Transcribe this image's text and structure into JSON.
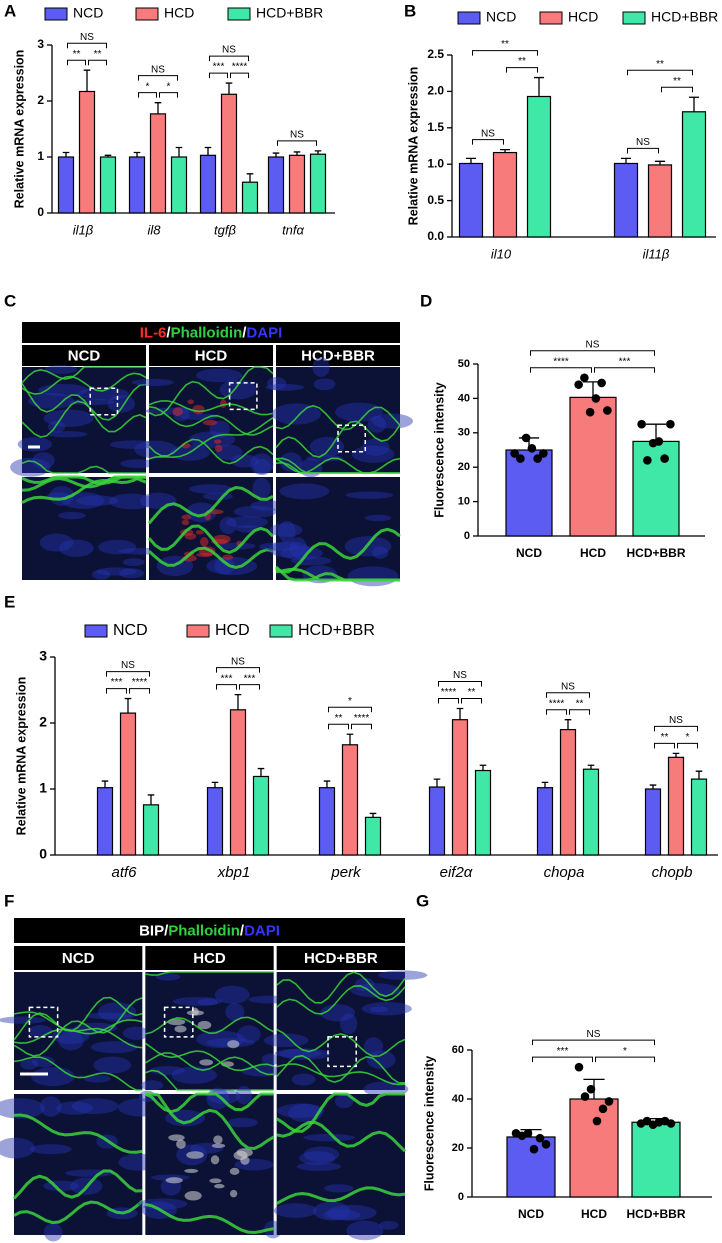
{
  "chart_data": [
    {
      "type": "bar",
      "label": "A",
      "ylabel": "Relative mRNA expression",
      "categories": [
        "il1β",
        "il8",
        "tgfβ",
        "tnfα"
      ],
      "series": [
        {
          "name": "NCD",
          "color": "#5c5cf2",
          "values": [
            1.0,
            1.0,
            1.03,
            1.0
          ],
          "errors": [
            0.08,
            0.08,
            0.14,
            0.07
          ]
        },
        {
          "name": "HCD",
          "color": "#f77b7b",
          "values": [
            2.17,
            1.77,
            2.12,
            1.03
          ],
          "errors": [
            0.38,
            0.2,
            0.2,
            0.06
          ]
        },
        {
          "name": "HCD+BBR",
          "color": "#3fe8a6",
          "values": [
            1.0,
            1.0,
            0.55,
            1.05
          ],
          "errors": [
            0.03,
            0.17,
            0.15,
            0.06
          ]
        }
      ],
      "ylim": [
        0,
        3
      ],
      "yticks": [
        0,
        1,
        2,
        3
      ],
      "annotations": [
        {
          "category": 0,
          "pair": [
            0,
            2
          ],
          "label": "NS"
        },
        {
          "category": 0,
          "pair": [
            0,
            1
          ],
          "label": "**"
        },
        {
          "category": 0,
          "pair": [
            1,
            2
          ],
          "label": "**"
        },
        {
          "category": 1,
          "pair": [
            0,
            2
          ],
          "label": "NS"
        },
        {
          "category": 1,
          "pair": [
            0,
            1
          ],
          "label": "*"
        },
        {
          "category": 1,
          "pair": [
            1,
            2
          ],
          "label": "*"
        },
        {
          "category": 2,
          "pair": [
            0,
            2
          ],
          "label": "NS"
        },
        {
          "category": 2,
          "pair": [
            0,
            1
          ],
          "label": "***"
        },
        {
          "category": 2,
          "pair": [
            1,
            2
          ],
          "label": "****"
        },
        {
          "category": 3,
          "pair": [
            0,
            2
          ],
          "label": "NS"
        }
      ]
    },
    {
      "type": "bar",
      "label": "B",
      "ylabel": "Relative mRNA expression",
      "categories": [
        "il10",
        "il11β"
      ],
      "series": [
        {
          "name": "NCD",
          "color": "#5c5cf2",
          "values": [
            1.01,
            1.01
          ],
          "errors": [
            0.07,
            0.07
          ]
        },
        {
          "name": "HCD",
          "color": "#f77b7b",
          "values": [
            1.16,
            0.99
          ],
          "errors": [
            0.04,
            0.05
          ]
        },
        {
          "name": "HCD+BBR",
          "color": "#3fe8a6",
          "values": [
            1.93,
            1.72
          ],
          "errors": [
            0.26,
            0.2
          ]
        }
      ],
      "ylim": [
        0,
        2.5
      ],
      "yticks": [
        {
          "value": 0,
          "label": "0.0"
        },
        0.5,
        {
          "value": 1,
          "label": "1.0"
        },
        1.5,
        {
          "value": 2,
          "label": "2.0"
        },
        2.5
      ],
      "annotations": [
        {
          "category": 0,
          "pair": [
            0,
            1
          ],
          "label": "NS"
        },
        {
          "category": 0,
          "pair": [
            1,
            2
          ],
          "label": "**"
        },
        {
          "category": 0,
          "pair": [
            0,
            2
          ],
          "label": "**"
        },
        {
          "category": 1,
          "pair": [
            0,
            1
          ],
          "label": "NS"
        },
        {
          "category": 1,
          "pair": [
            1,
            2
          ],
          "label": "**"
        },
        {
          "category": 1,
          "pair": [
            0,
            2
          ],
          "label": "**"
        }
      ]
    },
    {
      "type": "bar",
      "label": "D",
      "ylabel": "Fluorescence intensity",
      "categories": [
        "NCD",
        "HCD",
        "HCD+BBR"
      ],
      "values": [
        25,
        40.3,
        27.5
      ],
      "errors": [
        3.5,
        4.5,
        5
      ],
      "colors": [
        "#5c5cf2",
        "#f77b7b",
        "#3fe8a6"
      ],
      "points": [
        [
          24,
          22.5,
          28.5,
          25.5,
          22.5,
          24
        ],
        [
          44,
          46,
          36,
          40,
          44.5,
          36.5
        ],
        [
          32.5,
          22,
          27,
          27.5,
          22.5,
          32.5
        ]
      ],
      "ylim": [
        0,
        50
      ],
      "yticks": [
        0,
        10,
        20,
        30,
        40,
        50
      ],
      "annotations": [
        {
          "pair": [
            0,
            1
          ],
          "label": "****"
        },
        {
          "pair": [
            1,
            2
          ],
          "label": "***"
        },
        {
          "pair": [
            0,
            2
          ],
          "label": "NS"
        }
      ]
    },
    {
      "type": "bar",
      "label": "E",
      "ylabel": "Relative mRNA expression",
      "categories": [
        "atf6",
        "xbp1",
        "perk",
        "eif2α",
        "chopa",
        "chopb"
      ],
      "series": [
        {
          "name": "NCD",
          "color": "#5c5cf2",
          "values": [
            1.02,
            1.02,
            1.02,
            1.03,
            1.02,
            1.0
          ],
          "errors": [
            0.1,
            0.08,
            0.1,
            0.12,
            0.08,
            0.06
          ]
        },
        {
          "name": "HCD",
          "color": "#f77b7b",
          "values": [
            2.15,
            2.2,
            1.67,
            2.05,
            1.9,
            1.48
          ],
          "errors": [
            0.22,
            0.23,
            0.16,
            0.17,
            0.15,
            0.06
          ]
        },
        {
          "name": "HCD+BBR",
          "color": "#3fe8a6",
          "values": [
            0.76,
            1.19,
            0.57,
            1.28,
            1.3,
            1.15
          ],
          "errors": [
            0.15,
            0.12,
            0.06,
            0.08,
            0.06,
            0.12
          ]
        }
      ],
      "ylim": [
        0,
        3
      ],
      "yticks": [
        0,
        1,
        2,
        3
      ],
      "annotations": [
        {
          "category": 0,
          "pair": [
            0,
            2
          ],
          "label": "NS"
        },
        {
          "category": 0,
          "pair": [
            0,
            1
          ],
          "label": "***"
        },
        {
          "category": 0,
          "pair": [
            1,
            2
          ],
          "label": "****"
        },
        {
          "category": 1,
          "pair": [
            0,
            2
          ],
          "label": "NS"
        },
        {
          "category": 1,
          "pair": [
            0,
            1
          ],
          "label": "***"
        },
        {
          "category": 1,
          "pair": [
            1,
            2
          ],
          "label": "***"
        },
        {
          "category": 2,
          "pair": [
            0,
            2
          ],
          "label": "*"
        },
        {
          "category": 2,
          "pair": [
            0,
            1
          ],
          "label": "**"
        },
        {
          "category": 2,
          "pair": [
            1,
            2
          ],
          "label": "****"
        },
        {
          "category": 3,
          "pair": [
            0,
            2
          ],
          "label": "NS"
        },
        {
          "category": 3,
          "pair": [
            0,
            1
          ],
          "label": "****"
        },
        {
          "category": 3,
          "pair": [
            1,
            2
          ],
          "label": "**"
        },
        {
          "category": 4,
          "pair": [
            0,
            2
          ],
          "label": "NS"
        },
        {
          "category": 4,
          "pair": [
            0,
            1
          ],
          "label": "****"
        },
        {
          "category": 4,
          "pair": [
            1,
            2
          ],
          "label": "**"
        },
        {
          "category": 5,
          "pair": [
            0,
            2
          ],
          "label": "NS"
        },
        {
          "category": 5,
          "pair": [
            0,
            1
          ],
          "label": "**"
        },
        {
          "category": 5,
          "pair": [
            1,
            2
          ],
          "label": "*"
        }
      ]
    },
    {
      "type": "bar",
      "label": "G",
      "ylabel": "Fluorescence intensity",
      "categories": [
        "NCD",
        "HCD",
        "HCD+BBR"
      ],
      "values": [
        24.5,
        40,
        30.5
      ],
      "errors": [
        3,
        8,
        1.5
      ],
      "colors": [
        "#5c5cf2",
        "#f77b7b",
        "#3fe8a6"
      ],
      "points": [
        [
          26,
          25,
          26,
          19.5,
          24,
          21.5
        ],
        [
          53,
          41,
          44,
          31,
          36,
          39
        ],
        [
          30,
          31,
          29.5,
          30.5,
          31,
          30
        ]
      ],
      "ylim": [
        0,
        60
      ],
      "yticks": [
        0,
        20,
        40,
        60
      ],
      "annotations": [
        {
          "pair": [
            0,
            1
          ],
          "label": "***"
        },
        {
          "pair": [
            1,
            2
          ],
          "label": "*"
        },
        {
          "pair": [
            0,
            2
          ],
          "label": "NS"
        }
      ]
    }
  ],
  "image_panels": [
    {
      "label": "C",
      "title": [
        {
          "text": "IL-6",
          "color": "#ff2b2b"
        },
        {
          "text": "/",
          "color": "#ffffff"
        },
        {
          "text": "Phalloidin",
          "color": "#2ed13f"
        },
        {
          "text": "/",
          "color": "#ffffff"
        },
        {
          "text": "DAPI",
          "color": "#3535ff"
        }
      ],
      "columns": [
        "NCD",
        "HCD",
        "HCD+BBR"
      ]
    },
    {
      "label": "F",
      "title": [
        {
          "text": "BIP",
          "color": "#ffffff"
        },
        {
          "text": "/",
          "color": "#ffffff"
        },
        {
          "text": "Phalloidin",
          "color": "#2ed13f"
        },
        {
          "text": "/",
          "color": "#ffffff"
        },
        {
          "text": "DAPI",
          "color": "#3535ff"
        }
      ],
      "columns": [
        "NCD",
        "HCD",
        "HCD+BBR"
      ]
    }
  ]
}
